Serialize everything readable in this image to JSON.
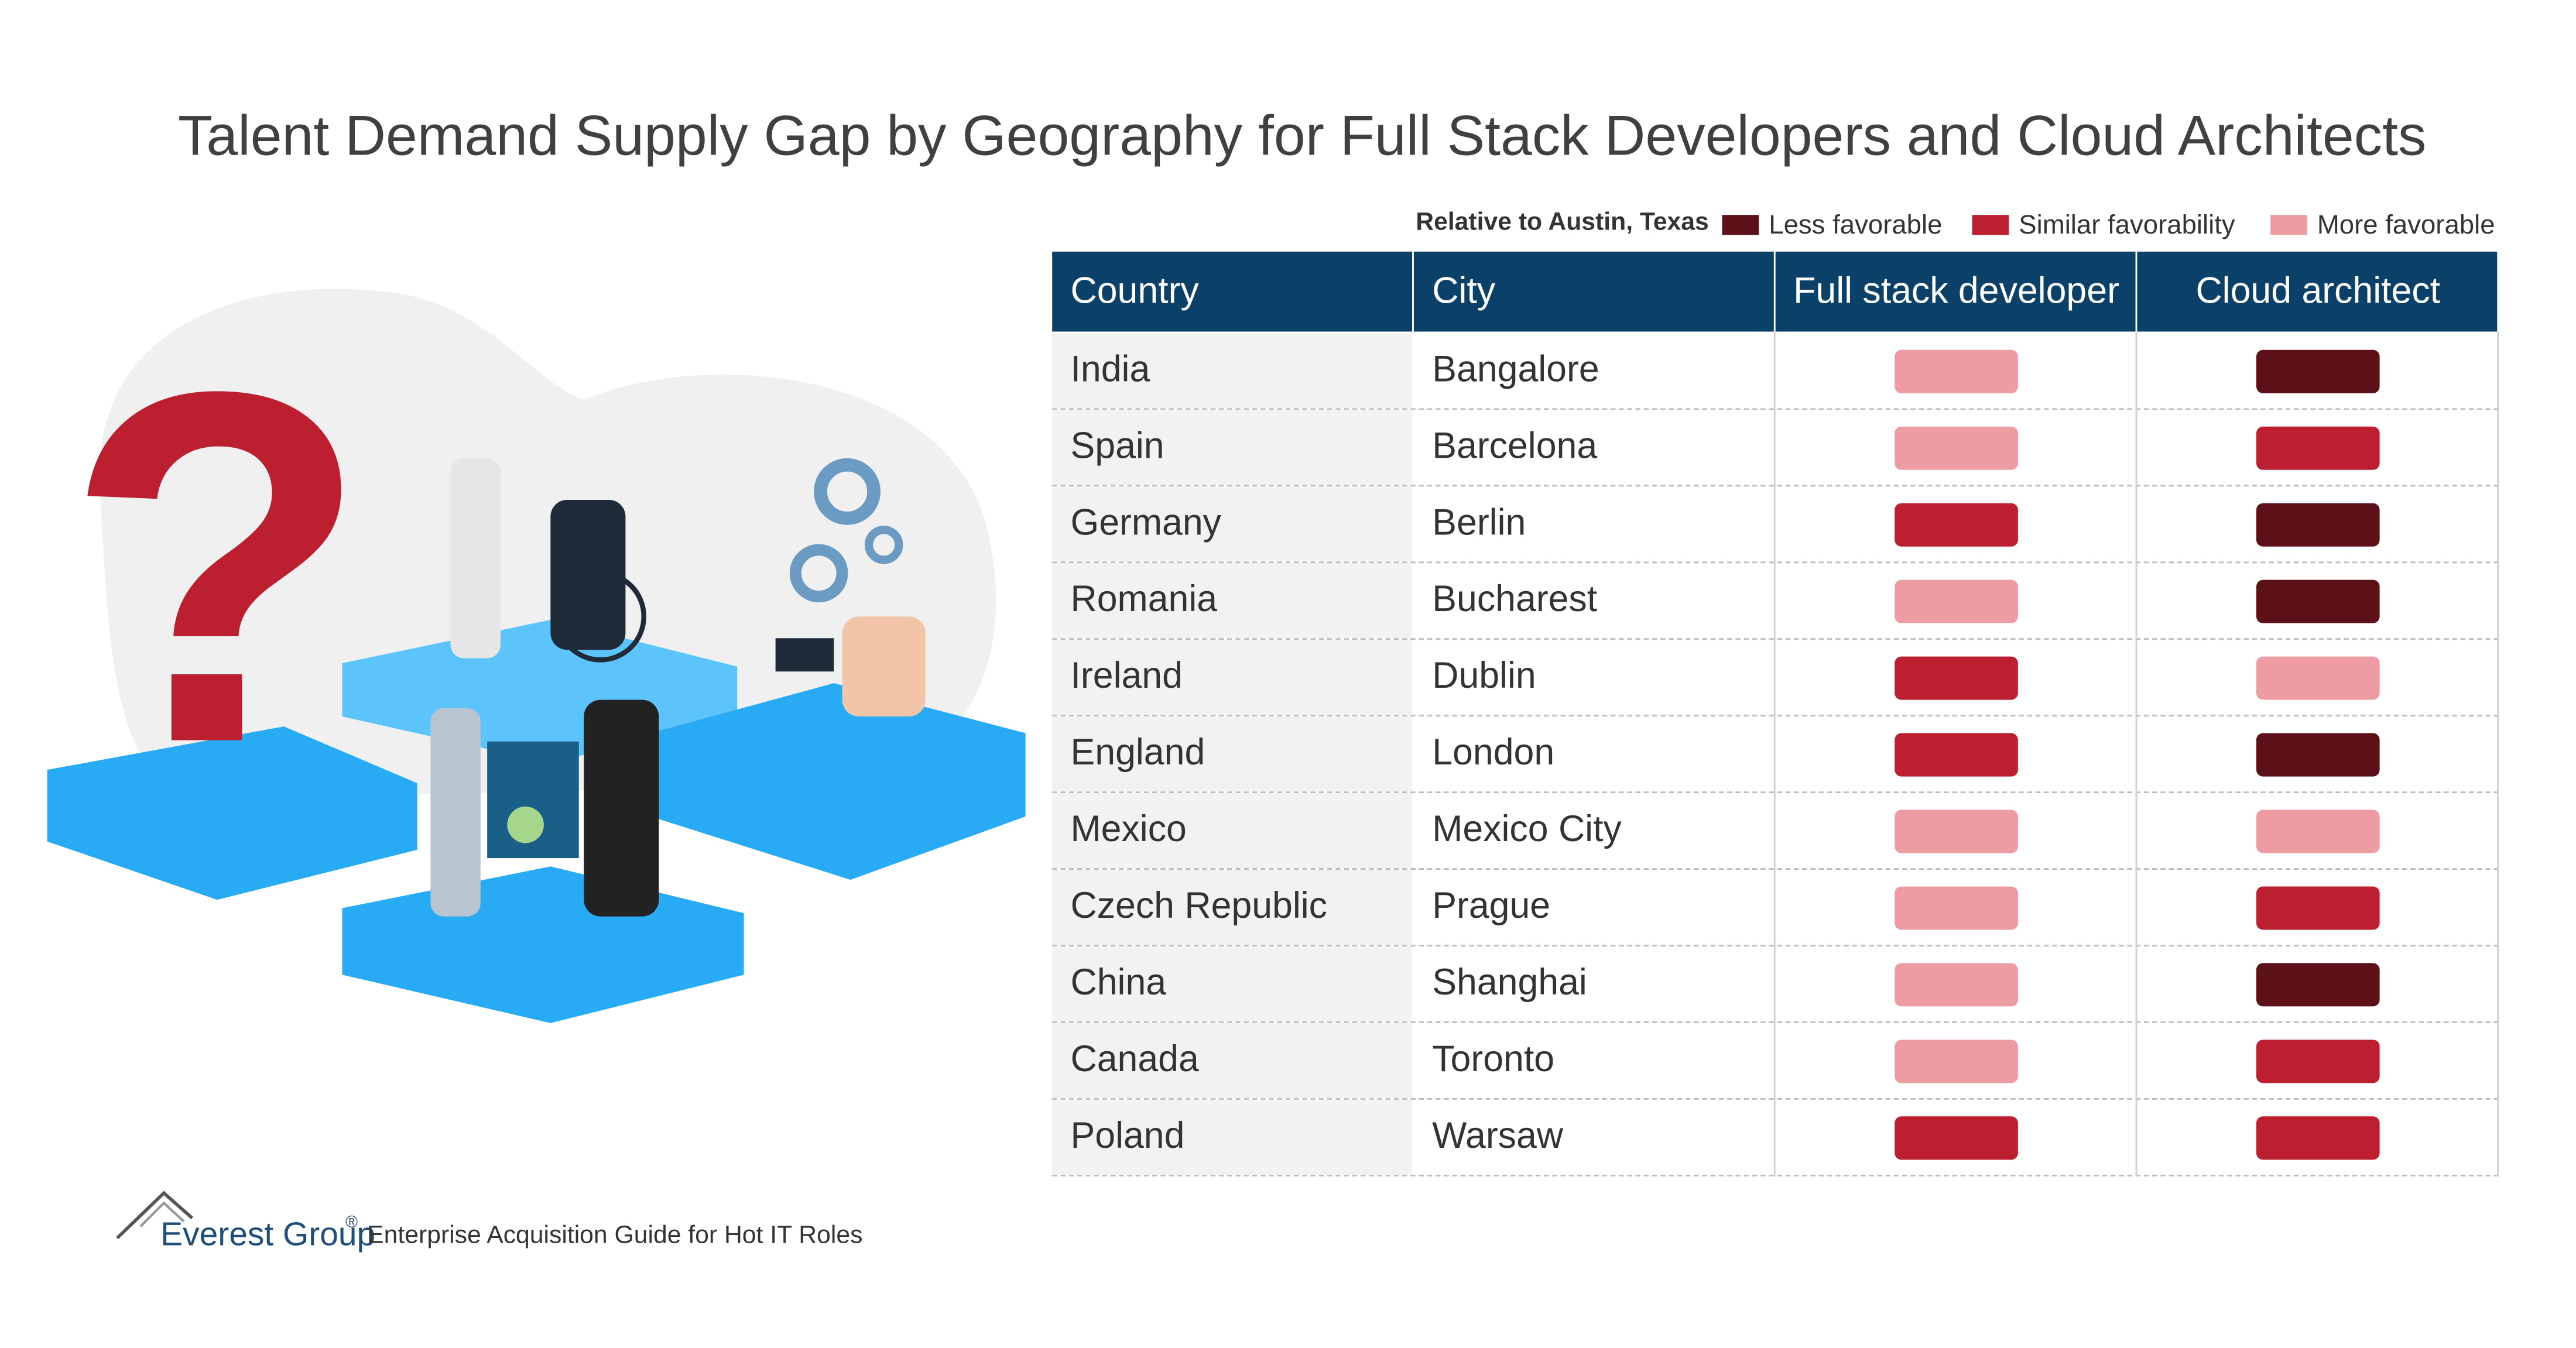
{
  "header": {
    "title": "Talent Demand Supply Gap by Geography for Full Stack Developers and Cloud Architects"
  },
  "legend": {
    "label": "Relative to Austin, Texas",
    "items": [
      {
        "name": "Less favorable",
        "color": "#5c1119"
      },
      {
        "name": "Similar favorability",
        "color": "#bb1f30"
      },
      {
        "name": "More favorable",
        "color": "#ee9ca3"
      }
    ]
  },
  "table": {
    "columns": [
      "Country",
      "City",
      "Full stack developer",
      "Cloud architect"
    ],
    "rows": [
      [
        "India",
        "Bangalore",
        "More favorable",
        "Less favorable"
      ],
      [
        "Spain",
        "Barcelona",
        "More favorable",
        "Similar favorability"
      ],
      [
        "Germany",
        "Berlin",
        "Similar favorability",
        "Less favorable"
      ],
      [
        "Romania",
        "Bucharest",
        "More favorable",
        "Less favorable"
      ],
      [
        "Ireland",
        "Dublin",
        "Similar favorability",
        "More favorable"
      ],
      [
        "England",
        "London",
        "Similar favorability",
        "Less favorable"
      ],
      [
        "Mexico",
        "Mexico City",
        "More favorable",
        "More favorable"
      ],
      [
        "Czech Republic",
        "Prague",
        "More favorable",
        "Similar favorability"
      ],
      [
        "China",
        "Shanghai",
        "More favorable",
        "Less favorable"
      ],
      [
        "Canada",
        "Toronto",
        "More favorable",
        "Similar favorability"
      ],
      [
        "Poland",
        "Warsaw",
        "Similar favorability",
        "Similar favorability"
      ]
    ]
  },
  "footer": {
    "brand": "Everest Group",
    "mark": "®",
    "source": "Enterprise Acquisition Guide for Hot IT Roles"
  }
}
